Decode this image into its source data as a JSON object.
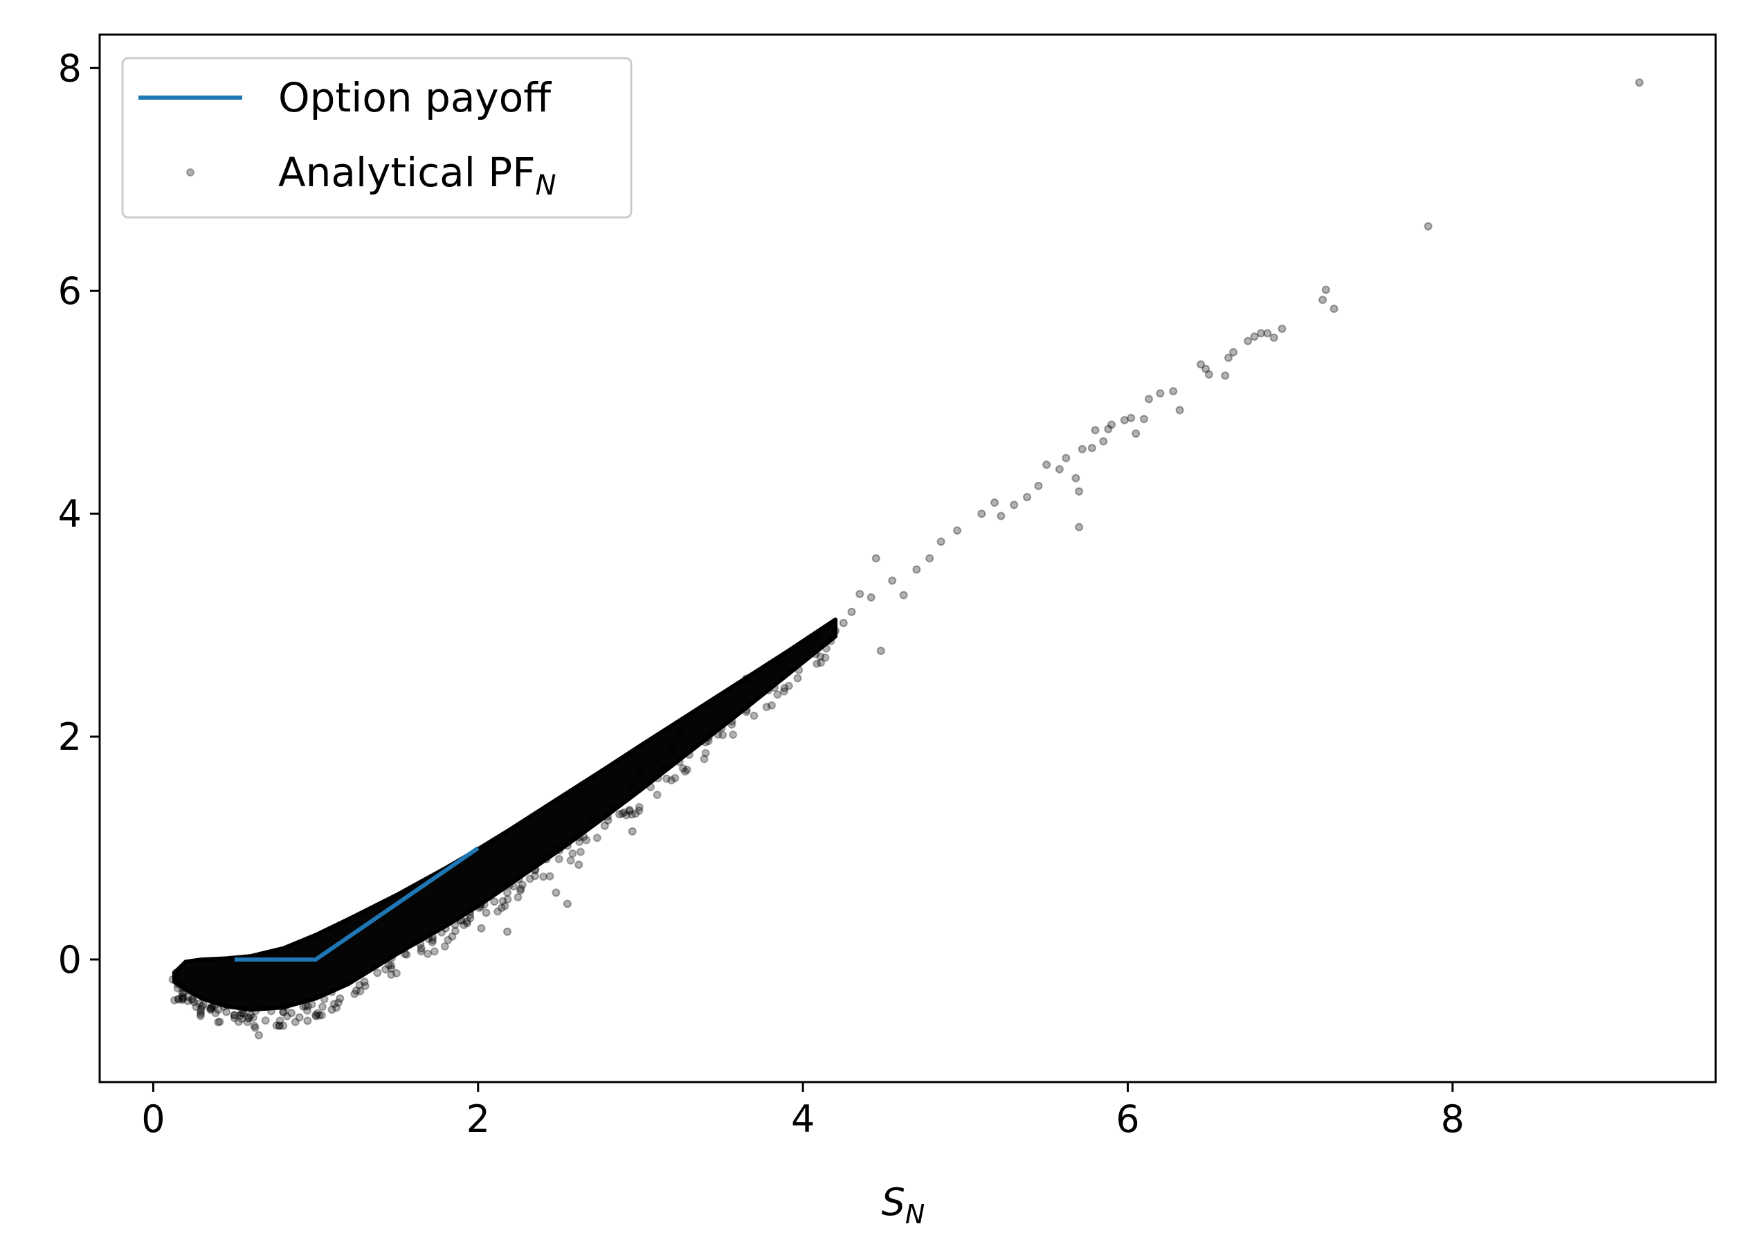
{
  "chart_data": {
    "type": "scatter",
    "xlabel": "S",
    "xlabel_sub": "N",
    "ylabel": "",
    "xlim": [
      -0.33,
      9.62
    ],
    "ylim": [
      -1.1,
      8.3
    ],
    "x_ticks": [
      0,
      2,
      4,
      6,
      8
    ],
    "y_ticks": [
      0,
      2,
      4,
      6,
      8
    ],
    "grid": false,
    "legend_position": "top-left",
    "legend": [
      {
        "label": "Option payoff",
        "label_sub": "",
        "kind": "line",
        "color": "#1f77b4"
      },
      {
        "label": "Analytical PF",
        "label_sub": "N",
        "kind": "scatter",
        "color": "#000000"
      }
    ],
    "series": [
      {
        "name": "Option payoff",
        "kind": "line",
        "color": "#1f77b4",
        "x": [
          0.5,
          1.0,
          2.0
        ],
        "y": [
          0.0,
          0.0,
          1.0
        ]
      },
      {
        "name": "Analytical PF_N",
        "kind": "scatter",
        "color": "#000000",
        "envelope": {
          "x": [
            0.13,
            0.2,
            0.3,
            0.45,
            0.6,
            0.8,
            1.0,
            1.2,
            1.5,
            1.8,
            2.0,
            2.2,
            2.5,
            2.8,
            3.0,
            3.3,
            3.6,
            3.9,
            4.2
          ],
          "y_upper": [
            -0.12,
            -0.02,
            0.0,
            0.01,
            0.03,
            0.1,
            0.22,
            0.36,
            0.58,
            0.82,
            0.99,
            1.17,
            1.45,
            1.73,
            1.92,
            2.2,
            2.48,
            2.76,
            3.05
          ],
          "y_lower": [
            -0.2,
            -0.27,
            -0.35,
            -0.42,
            -0.45,
            -0.43,
            -0.35,
            -0.22,
            0.05,
            0.3,
            0.48,
            0.68,
            0.98,
            1.3,
            1.52,
            1.86,
            2.2,
            2.55,
            2.9
          ]
        },
        "outliers": [
          [
            9.15,
            7.87
          ],
          [
            7.85,
            6.58
          ],
          [
            7.2,
            5.92
          ],
          [
            7.22,
            6.01
          ],
          [
            7.27,
            5.84
          ],
          [
            6.95,
            5.66
          ],
          [
            6.9,
            5.58
          ],
          [
            6.86,
            5.62
          ],
          [
            6.82,
            5.62
          ],
          [
            6.78,
            5.59
          ],
          [
            6.74,
            5.55
          ],
          [
            6.65,
            5.45
          ],
          [
            6.62,
            5.4
          ],
          [
            6.6,
            5.24
          ],
          [
            6.5,
            5.25
          ],
          [
            6.48,
            5.3
          ],
          [
            6.45,
            5.34
          ],
          [
            6.32,
            4.93
          ],
          [
            6.28,
            5.1
          ],
          [
            6.2,
            5.08
          ],
          [
            6.13,
            5.03
          ],
          [
            6.1,
            4.85
          ],
          [
            6.05,
            4.72
          ],
          [
            6.02,
            4.86
          ],
          [
            5.98,
            4.84
          ],
          [
            5.9,
            4.8
          ],
          [
            5.88,
            4.76
          ],
          [
            5.85,
            4.65
          ],
          [
            5.8,
            4.75
          ],
          [
            5.78,
            4.59
          ],
          [
            5.72,
            4.58
          ],
          [
            5.7,
            4.2
          ],
          [
            5.68,
            4.32
          ],
          [
            5.7,
            3.88
          ],
          [
            5.62,
            4.5
          ],
          [
            5.58,
            4.4
          ],
          [
            5.5,
            4.44
          ],
          [
            5.45,
            4.25
          ],
          [
            5.38,
            4.15
          ],
          [
            5.3,
            4.08
          ],
          [
            5.22,
            3.98
          ],
          [
            5.18,
            4.1
          ],
          [
            5.1,
            4.0
          ],
          [
            4.95,
            3.85
          ],
          [
            4.85,
            3.75
          ],
          [
            4.78,
            3.6
          ],
          [
            4.7,
            3.5
          ],
          [
            4.62,
            3.27
          ],
          [
            4.55,
            3.4
          ],
          [
            4.42,
            3.25
          ],
          [
            4.35,
            3.28
          ],
          [
            4.45,
            3.6
          ],
          [
            4.48,
            2.77
          ],
          [
            4.1,
            2.89
          ],
          [
            3.85,
            2.68
          ],
          [
            3.65,
            2.52
          ],
          [
            3.45,
            2.3
          ],
          [
            3.25,
            2.05
          ],
          [
            3.1,
            1.8
          ],
          [
            2.95,
            1.55
          ],
          [
            2.82,
            1.38
          ],
          [
            2.72,
            1.25
          ],
          [
            2.62,
            1.2
          ],
          [
            2.55,
            1.05
          ],
          [
            2.48,
            0.98
          ],
          [
            2.42,
            0.9
          ],
          [
            2.35,
            0.8
          ],
          [
            2.25,
            0.72
          ],
          [
            2.18,
            0.6
          ],
          [
            2.1,
            0.52
          ],
          [
            2.05,
            0.42
          ],
          [
            2.55,
            0.5
          ],
          [
            2.48,
            0.6
          ],
          [
            2.35,
            0.75
          ],
          [
            2.62,
            0.85
          ],
          [
            2.78,
            1.2
          ],
          [
            2.95,
            1.15
          ],
          [
            2.8,
            1.25
          ],
          [
            1.9,
            0.35
          ],
          [
            1.8,
            0.28
          ],
          [
            1.72,
            0.2
          ],
          [
            1.65,
            0.1
          ],
          [
            1.55,
            0.05
          ],
          [
            1.45,
            -0.05
          ],
          [
            1.38,
            -0.12
          ],
          [
            1.3,
            -0.2
          ],
          [
            1.25,
            -0.28
          ],
          [
            1.15,
            -0.35
          ],
          [
            1.1,
            -0.45
          ],
          [
            1.0,
            -0.5
          ],
          [
            0.95,
            -0.55
          ],
          [
            0.9,
            -0.52
          ],
          [
            0.85,
            -0.48
          ],
          [
            0.78,
            -0.55
          ],
          [
            0.65,
            -0.68
          ],
          [
            0.6,
            -0.5
          ],
          [
            0.55,
            -0.48
          ],
          [
            0.5,
            -0.5
          ],
          [
            0.45,
            -0.47
          ],
          [
            0.4,
            -0.45
          ],
          [
            0.35,
            -0.44
          ],
          [
            0.3,
            -0.42
          ],
          [
            0.25,
            -0.38
          ],
          [
            0.18,
            -0.3
          ],
          [
            0.15,
            -0.22
          ],
          [
            0.12,
            -0.18
          ],
          [
            0.14,
            -0.12
          ],
          [
            2.18,
            0.25
          ],
          [
            2.02,
            0.28
          ],
          [
            1.95,
            0.4
          ],
          [
            3.5,
            2.08
          ],
          [
            3.4,
            1.95
          ],
          [
            3.6,
            2.35
          ],
          [
            3.75,
            2.5
          ],
          [
            3.8,
            2.55
          ],
          [
            4.05,
            2.78
          ],
          [
            4.2,
            2.95
          ],
          [
            4.25,
            3.02
          ],
          [
            4.3,
            3.12
          ],
          [
            3.0,
            1.7
          ],
          [
            3.15,
            1.72
          ],
          [
            3.2,
            1.9
          ],
          [
            3.55,
            2.2
          ],
          [
            2.7,
            1.28
          ],
          [
            2.65,
            1.1
          ]
        ]
      }
    ]
  }
}
